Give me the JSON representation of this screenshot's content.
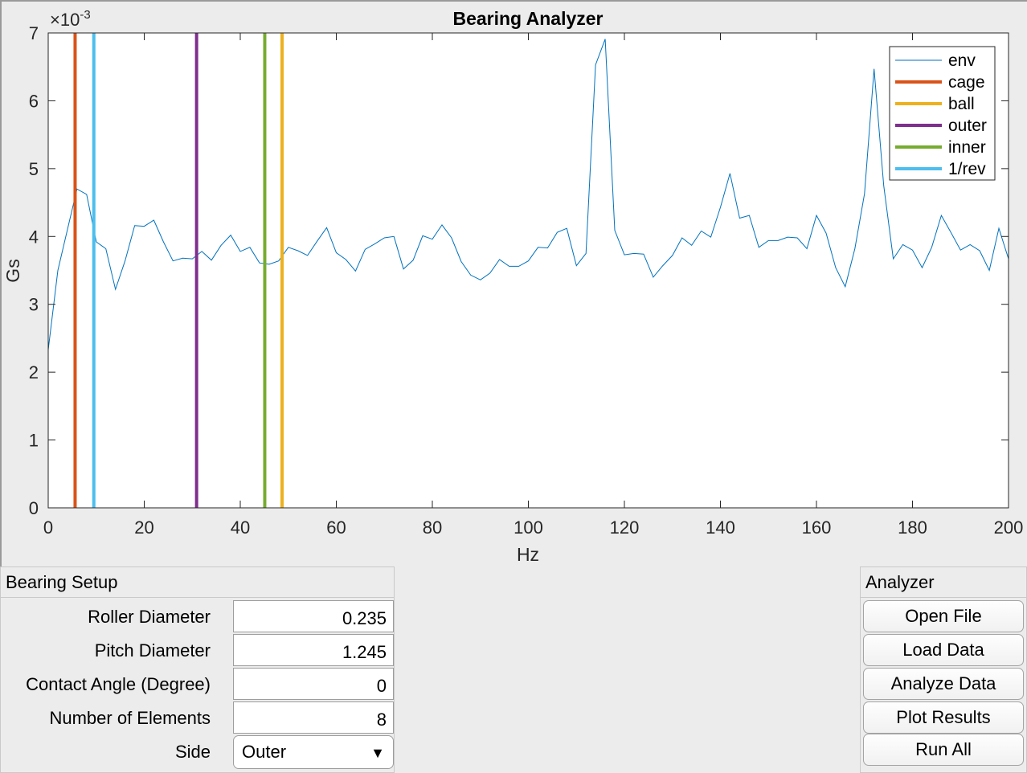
{
  "chart_data": {
    "type": "line",
    "title": "Bearing Analyzer",
    "xlabel": "Hz",
    "ylabel": "Gs",
    "y_exponent_label": "×10",
    "y_exponent_power": "-3",
    "xlim": [
      0,
      200
    ],
    "ylim": [
      0,
      0.007
    ],
    "xticks": [
      "0",
      "20",
      "40",
      "60",
      "80",
      "100",
      "120",
      "140",
      "160",
      "180",
      "200"
    ],
    "yticks": [
      "0",
      "1",
      "2",
      "3",
      "4",
      "5",
      "6",
      "7"
    ],
    "grid": false,
    "legend_position": "top-right",
    "series": [
      {
        "name": "env",
        "color": "#0072bd",
        "x": [
          0,
          2,
          4,
          6,
          8,
          10,
          12,
          14,
          16,
          18,
          20,
          22,
          24,
          26,
          28,
          30,
          32,
          34,
          36,
          38,
          40,
          42,
          44,
          46,
          48,
          50,
          52,
          54,
          56,
          58,
          60,
          62,
          64,
          66,
          68,
          70,
          72,
          74,
          76,
          78,
          80,
          82,
          84,
          86,
          88,
          90,
          92,
          94,
          96,
          98,
          100,
          102,
          104,
          106,
          108,
          110,
          112,
          114,
          116,
          118,
          120,
          122,
          124,
          126,
          128,
          130,
          132,
          134,
          136,
          138,
          140,
          142,
          144,
          146,
          148,
          150,
          152,
          154,
          156,
          158,
          160,
          162,
          164,
          166,
          168,
          170,
          172,
          174,
          176,
          178,
          180,
          182,
          184,
          186,
          188,
          190,
          192,
          194,
          196,
          198,
          200
        ],
        "values": [
          0.00233,
          0.0035,
          0.0041,
          0.0047,
          0.00462,
          0.00392,
          0.00382,
          0.00322,
          0.00364,
          0.00416,
          0.00415,
          0.00424,
          0.00392,
          0.00364,
          0.00368,
          0.00367,
          0.00378,
          0.00365,
          0.00387,
          0.00402,
          0.00378,
          0.00384,
          0.00361,
          0.00359,
          0.00364,
          0.00384,
          0.00379,
          0.00372,
          0.00393,
          0.00413,
          0.00376,
          0.00366,
          0.00349,
          0.00381,
          0.00389,
          0.00398,
          0.004,
          0.00352,
          0.00365,
          0.00401,
          0.00396,
          0.00417,
          0.00398,
          0.00363,
          0.00343,
          0.00336,
          0.00346,
          0.00366,
          0.00356,
          0.00356,
          0.00364,
          0.00384,
          0.00383,
          0.00406,
          0.00412,
          0.00357,
          0.00375,
          0.00653,
          0.00691,
          0.00409,
          0.00373,
          0.00375,
          0.00374,
          0.0034,
          0.00357,
          0.00372,
          0.00398,
          0.00387,
          0.00408,
          0.00399,
          0.00443,
          0.00493,
          0.00427,
          0.00431,
          0.00384,
          0.00394,
          0.00394,
          0.00399,
          0.00398,
          0.00382,
          0.00431,
          0.00405,
          0.00354,
          0.00326,
          0.00382,
          0.00463,
          0.00647,
          0.00475,
          0.00367,
          0.00388,
          0.0038,
          0.00354,
          0.00384,
          0.00431,
          0.00406,
          0.0038,
          0.00388,
          0.00379,
          0.0035,
          0.00412,
          0.00367
        ]
      },
      {
        "name": "cage",
        "color": "#d95319",
        "vline_x": 5.6
      },
      {
        "name": "ball",
        "color": "#edb120",
        "vline_x": 48.7
      },
      {
        "name": "outer",
        "color": "#7e2f8e",
        "vline_x": 30.9
      },
      {
        "name": "inner",
        "color": "#77ac30",
        "vline_x": 45.1
      },
      {
        "name": "1/rev",
        "color": "#4dbeee",
        "vline_x": 9.5
      }
    ]
  },
  "bearing_setup": {
    "title": "Bearing Setup",
    "roller_diameter_label": "Roller Diameter",
    "roller_diameter_value": "0.235",
    "pitch_diameter_label": "Pitch Diameter",
    "pitch_diameter_value": "1.245",
    "contact_angle_label": "Contact Angle (Degree)",
    "contact_angle_value": "0",
    "num_elements_label": "Number of Elements",
    "num_elements_value": "8",
    "side_label": "Side",
    "side_value": "Outer"
  },
  "analyzer": {
    "title": "Analyzer",
    "open_file": "Open File",
    "load_data": "Load Data",
    "analyze_data": "Analyze Data",
    "plot_results": "Plot Results",
    "run_all": "Run All"
  }
}
